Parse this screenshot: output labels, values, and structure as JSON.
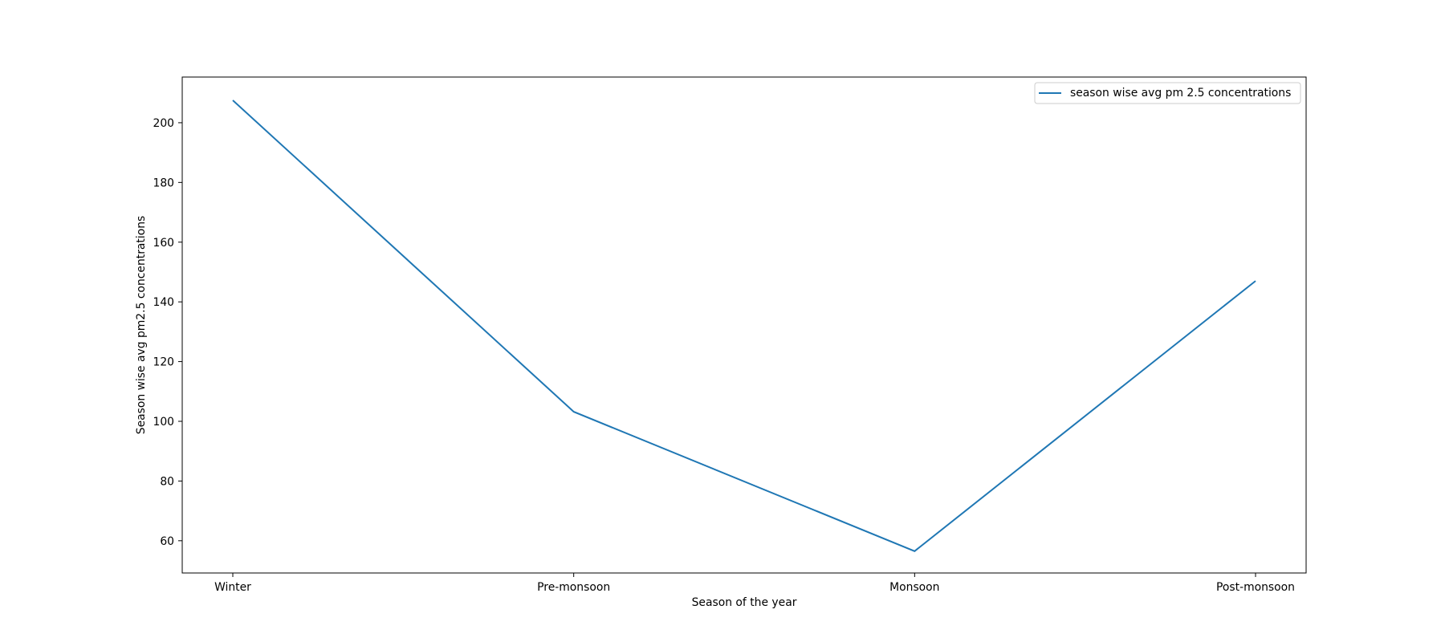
{
  "chart_data": {
    "type": "line",
    "title": "",
    "xlabel": "Season of the year",
    "ylabel": "Season wise avg pm2.5 concentrations",
    "categories": [
      "Winter",
      "Pre-monsoon",
      "Monsoon",
      "Post-monsoon"
    ],
    "series": [
      {
        "name": "season wise avg pm 2.5 concentrations",
        "values": [
          207.5,
          103.2,
          56.5,
          147.0
        ],
        "color": "#1f77b4"
      }
    ],
    "ylim": [
      49.2,
      215.3
    ],
    "yticks": [
      60,
      80,
      100,
      120,
      140,
      160,
      180,
      200
    ],
    "grid": false,
    "legend_position": "top-right"
  }
}
